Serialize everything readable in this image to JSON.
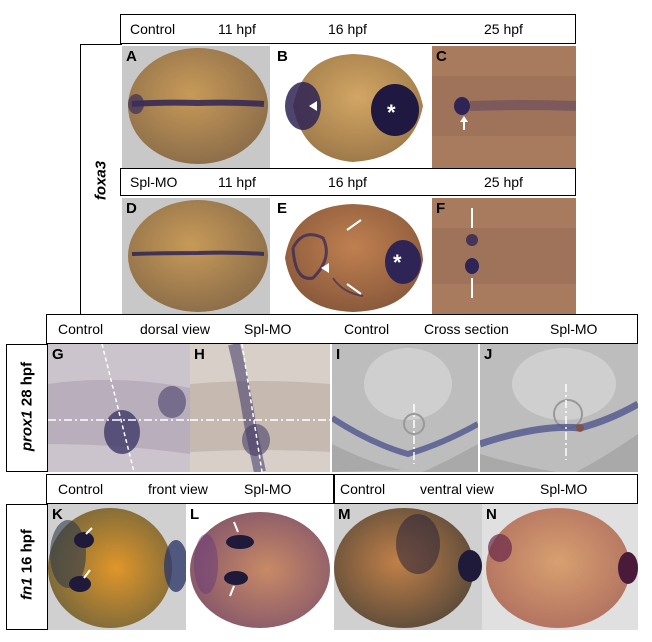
{
  "row1": {
    "gene": "foxa3",
    "headerA": {
      "c1": "Control",
      "c2": "11 hpf",
      "c3": "16 hpf",
      "c4": "25 hpf"
    },
    "headerB": {
      "c1": "Spl-MO",
      "c2": "11 hpf",
      "c3": "16 hpf",
      "c4": "25 hpf"
    },
    "panels": [
      "A",
      "B",
      "C",
      "D",
      "E",
      "F"
    ]
  },
  "row2": {
    "gene": "prox1",
    "stage": "28 hpf",
    "header": {
      "c1": "Control",
      "c2": "dorsal view",
      "c3": "Spl-MO",
      "c4": "Control",
      "c5": "Cross section",
      "c6": "Spl-MO"
    },
    "panels": [
      "G",
      "H",
      "I",
      "J"
    ]
  },
  "row3": {
    "gene": "fn1",
    "stage": "16 hpf",
    "headerLeft": {
      "c1": "Control",
      "c2": "front view",
      "c3": "Spl-MO"
    },
    "headerRight": {
      "c1": "Control",
      "c2": "ventral view",
      "c3": "Spl-MO"
    },
    "panels": [
      "K",
      "L",
      "M",
      "N"
    ]
  },
  "marks": {
    "asterisk": "*"
  },
  "colors": {
    "embryo": "#b98a4c",
    "stain": "#2f2456",
    "bg_gray": "#c9c9c9",
    "bg_brown": "#a87a5e"
  }
}
